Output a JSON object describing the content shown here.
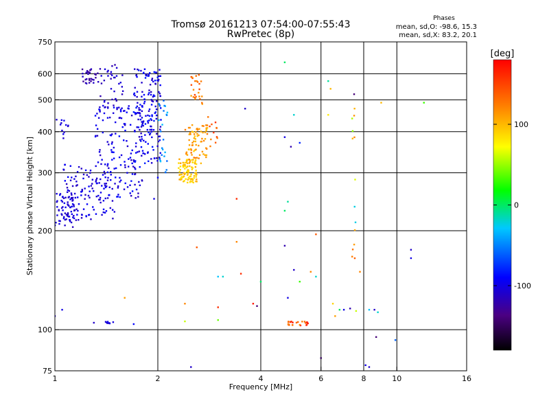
{
  "chart_data": {
    "type": "scatter",
    "title": "Tromsø 20161213 07:54:00-07:55:43",
    "subtitle": "RwPretec (8p)",
    "xlabel": "Frequency [MHz]",
    "ylabel": "Stationary phase Virtual Height [km]",
    "x_scale": "log",
    "y_scale": "log",
    "xlim": [
      1,
      16
    ],
    "ylim": [
      75,
      750
    ],
    "x_ticks": [
      1,
      2,
      4,
      6,
      8,
      10,
      16
    ],
    "y_ticks": [
      75,
      100,
      200,
      300,
      400,
      500,
      600,
      750
    ],
    "x_grid": [
      2,
      4,
      6,
      8,
      10
    ],
    "y_grid": [
      100,
      200,
      300,
      400,
      500,
      600
    ],
    "stats": {
      "heading": "Phases",
      "line1": "mean, sd,O: -98.6, 15.3",
      "line2": "mean, sd,X:  83.2, 20.1"
    },
    "colorbar": {
      "unit": "[deg]",
      "range": [
        -180,
        180
      ],
      "ticks": [
        100,
        0,
        -100
      ],
      "colors": [
        "#000000",
        "#4b0082",
        "#0000ff",
        "#00c8ff",
        "#00ff00",
        "#ffff00",
        "#ff8000",
        "#ff0000"
      ]
    },
    "clusters": [
      {
        "freq": [
          1.0,
          1.15
        ],
        "height": [
          205,
          260
        ],
        "n": 60,
        "phase": [
          -115,
          -95
        ]
      },
      {
        "freq": [
          1.05,
          1.5
        ],
        "height": [
          215,
          320
        ],
        "n": 120,
        "phase": [
          -115,
          -90
        ]
      },
      {
        "freq": [
          1.3,
          1.8
        ],
        "height": [
          250,
          480
        ],
        "n": 150,
        "phase": [
          -115,
          -85
        ]
      },
      {
        "freq": [
          1.7,
          2.05
        ],
        "height": [
          320,
          620
        ],
        "n": 170,
        "phase": [
          -115,
          -80
        ]
      },
      {
        "freq": [
          1.2,
          1.35
        ],
        "height": [
          560,
          620
        ],
        "n": 30,
        "phase": [
          -130,
          -110
        ]
      },
      {
        "freq": [
          1.35,
          1.6
        ],
        "height": [
          470,
          640
        ],
        "n": 40,
        "phase": [
          -120,
          -100
        ]
      },
      {
        "freq": [
          1.0,
          1.1
        ],
        "height": [
          380,
          440
        ],
        "n": 12,
        "phase": [
          -110,
          -95
        ]
      },
      {
        "freq": [
          2.0,
          2.15
        ],
        "height": [
          300,
          500
        ],
        "n": 25,
        "phase": [
          -60,
          -30
        ]
      },
      {
        "freq": [
          2.3,
          2.6
        ],
        "height": [
          280,
          330
        ],
        "n": 90,
        "phase": [
          80,
          110
        ]
      },
      {
        "freq": [
          2.4,
          2.8
        ],
        "height": [
          320,
          420
        ],
        "n": 80,
        "phase": [
          90,
          130
        ]
      },
      {
        "freq": [
          2.5,
          2.7
        ],
        "height": [
          480,
          600
        ],
        "n": 25,
        "phase": [
          110,
          150
        ]
      },
      {
        "freq": [
          2.8,
          3.0
        ],
        "height": [
          360,
          450
        ],
        "n": 12,
        "phase": [
          120,
          160
        ]
      },
      {
        "freq": [
          4.8,
          5.5
        ],
        "height": [
          103,
          106
        ],
        "n": 25,
        "phase": [
          120,
          175
        ]
      },
      {
        "freq": [
          1.4,
          1.5
        ],
        "height": [
          104,
          106
        ],
        "n": 8,
        "phase": [
          -110,
          -95
        ]
      },
      {
        "freq": [
          7.4,
          7.6
        ],
        "height": [
          380,
          500
        ],
        "n": 6,
        "phase": [
          20,
          130
        ]
      },
      {
        "freq": [
          7.5,
          7.6
        ],
        "height": [
          200,
          320
        ],
        "n": 4,
        "phase": [
          -60,
          120
        ]
      },
      {
        "freq": [
          7.4,
          7.6
        ],
        "height": [
          160,
          190
        ],
        "n": 4,
        "phase": [
          100,
          140
        ]
      }
    ],
    "points": [
      {
        "x": 4.7,
        "y": 650,
        "phase": 0
      },
      {
        "x": 6.4,
        "y": 540,
        "phase": 100
      },
      {
        "x": 6.3,
        "y": 570,
        "phase": -10
      },
      {
        "x": 7.5,
        "y": 520,
        "phase": -140
      },
      {
        "x": 3.6,
        "y": 470,
        "phase": -110
      },
      {
        "x": 12.0,
        "y": 490,
        "phase": 30
      },
      {
        "x": 9.0,
        "y": 490,
        "phase": 100
      },
      {
        "x": 4.7,
        "y": 385,
        "phase": -100
      },
      {
        "x": 4.9,
        "y": 360,
        "phase": -120
      },
      {
        "x": 5.2,
        "y": 370,
        "phase": -80
      },
      {
        "x": 6.3,
        "y": 450,
        "phase": 80
      },
      {
        "x": 5.0,
        "y": 450,
        "phase": -20
      },
      {
        "x": 3.4,
        "y": 250,
        "phase": 160
      },
      {
        "x": 4.8,
        "y": 245,
        "phase": -10
      },
      {
        "x": 4.7,
        "y": 230,
        "phase": 0
      },
      {
        "x": 5.8,
        "y": 195,
        "phase": 140
      },
      {
        "x": 3.4,
        "y": 185,
        "phase": 120
      },
      {
        "x": 2.6,
        "y": 178,
        "phase": 140
      },
      {
        "x": 4.7,
        "y": 180,
        "phase": -120
      },
      {
        "x": 11.0,
        "y": 175,
        "phase": -110
      },
      {
        "x": 11.0,
        "y": 165,
        "phase": -100
      },
      {
        "x": 3.0,
        "y": 145,
        "phase": -30
      },
      {
        "x": 3.1,
        "y": 145,
        "phase": -20
      },
      {
        "x": 3.5,
        "y": 148,
        "phase": 160
      },
      {
        "x": 4.0,
        "y": 140,
        "phase": 0
      },
      {
        "x": 5.0,
        "y": 152,
        "phase": -110
      },
      {
        "x": 5.6,
        "y": 150,
        "phase": 120
      },
      {
        "x": 5.8,
        "y": 145,
        "phase": -20
      },
      {
        "x": 5.2,
        "y": 140,
        "phase": 30
      },
      {
        "x": 7.8,
        "y": 150,
        "phase": 120
      },
      {
        "x": 1.6,
        "y": 125,
        "phase": 110
      },
      {
        "x": 2.4,
        "y": 120,
        "phase": 120
      },
      {
        "x": 3.0,
        "y": 117,
        "phase": 160
      },
      {
        "x": 3.8,
        "y": 120,
        "phase": 170
      },
      {
        "x": 3.9,
        "y": 118,
        "phase": -140
      },
      {
        "x": 4.8,
        "y": 125,
        "phase": -100
      },
      {
        "x": 6.5,
        "y": 120,
        "phase": 90
      },
      {
        "x": 6.8,
        "y": 115,
        "phase": 0
      },
      {
        "x": 7.0,
        "y": 115,
        "phase": -100
      },
      {
        "x": 7.3,
        "y": 116,
        "phase": -120
      },
      {
        "x": 7.6,
        "y": 114,
        "phase": 60
      },
      {
        "x": 8.3,
        "y": 115,
        "phase": -30
      },
      {
        "x": 8.6,
        "y": 115,
        "phase": -110
      },
      {
        "x": 8.8,
        "y": 113,
        "phase": -20
      },
      {
        "x": 1.0,
        "y": 110,
        "phase": -110
      },
      {
        "x": 1.05,
        "y": 115,
        "phase": -100
      },
      {
        "x": 1.3,
        "y": 105,
        "phase": -110
      },
      {
        "x": 1.7,
        "y": 104,
        "phase": -90
      },
      {
        "x": 2.4,
        "y": 106,
        "phase": 60
      },
      {
        "x": 3.0,
        "y": 107,
        "phase": 40
      },
      {
        "x": 6.6,
        "y": 110,
        "phase": 110
      },
      {
        "x": 8.7,
        "y": 95,
        "phase": -140
      },
      {
        "x": 9.9,
        "y": 93,
        "phase": -60
      },
      {
        "x": 6.0,
        "y": 82,
        "phase": -150
      },
      {
        "x": 8.1,
        "y": 78,
        "phase": -100
      },
      {
        "x": 8.3,
        "y": 77,
        "phase": -110
      },
      {
        "x": 2.5,
        "y": 77,
        "phase": -110
      },
      {
        "x": 1.95,
        "y": 250,
        "phase": -100
      },
      {
        "x": 2.0,
        "y": 290,
        "phase": -90
      }
    ]
  }
}
